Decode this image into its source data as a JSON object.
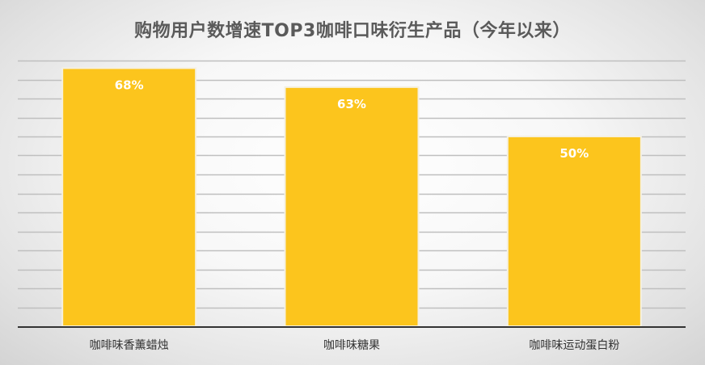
{
  "chart_data": {
    "type": "bar",
    "title": "购物用户数增速TOP3咖啡口味衍生产品（今年以来）",
    "categories": [
      "咖啡味香薰蜡烛",
      "咖啡味糖果",
      "咖啡味运动蛋白粉"
    ],
    "values": [
      68,
      63,
      50
    ],
    "value_labels": [
      "68%",
      "63%",
      "50%"
    ],
    "unit": "%",
    "ylim": [
      0,
      70
    ],
    "grid": true,
    "legend": "none",
    "colors": {
      "bar": "#FCC51D",
      "bar_edge": "#f5f0e0",
      "grid": "#bfbfbf",
      "axis": "#333333"
    }
  }
}
